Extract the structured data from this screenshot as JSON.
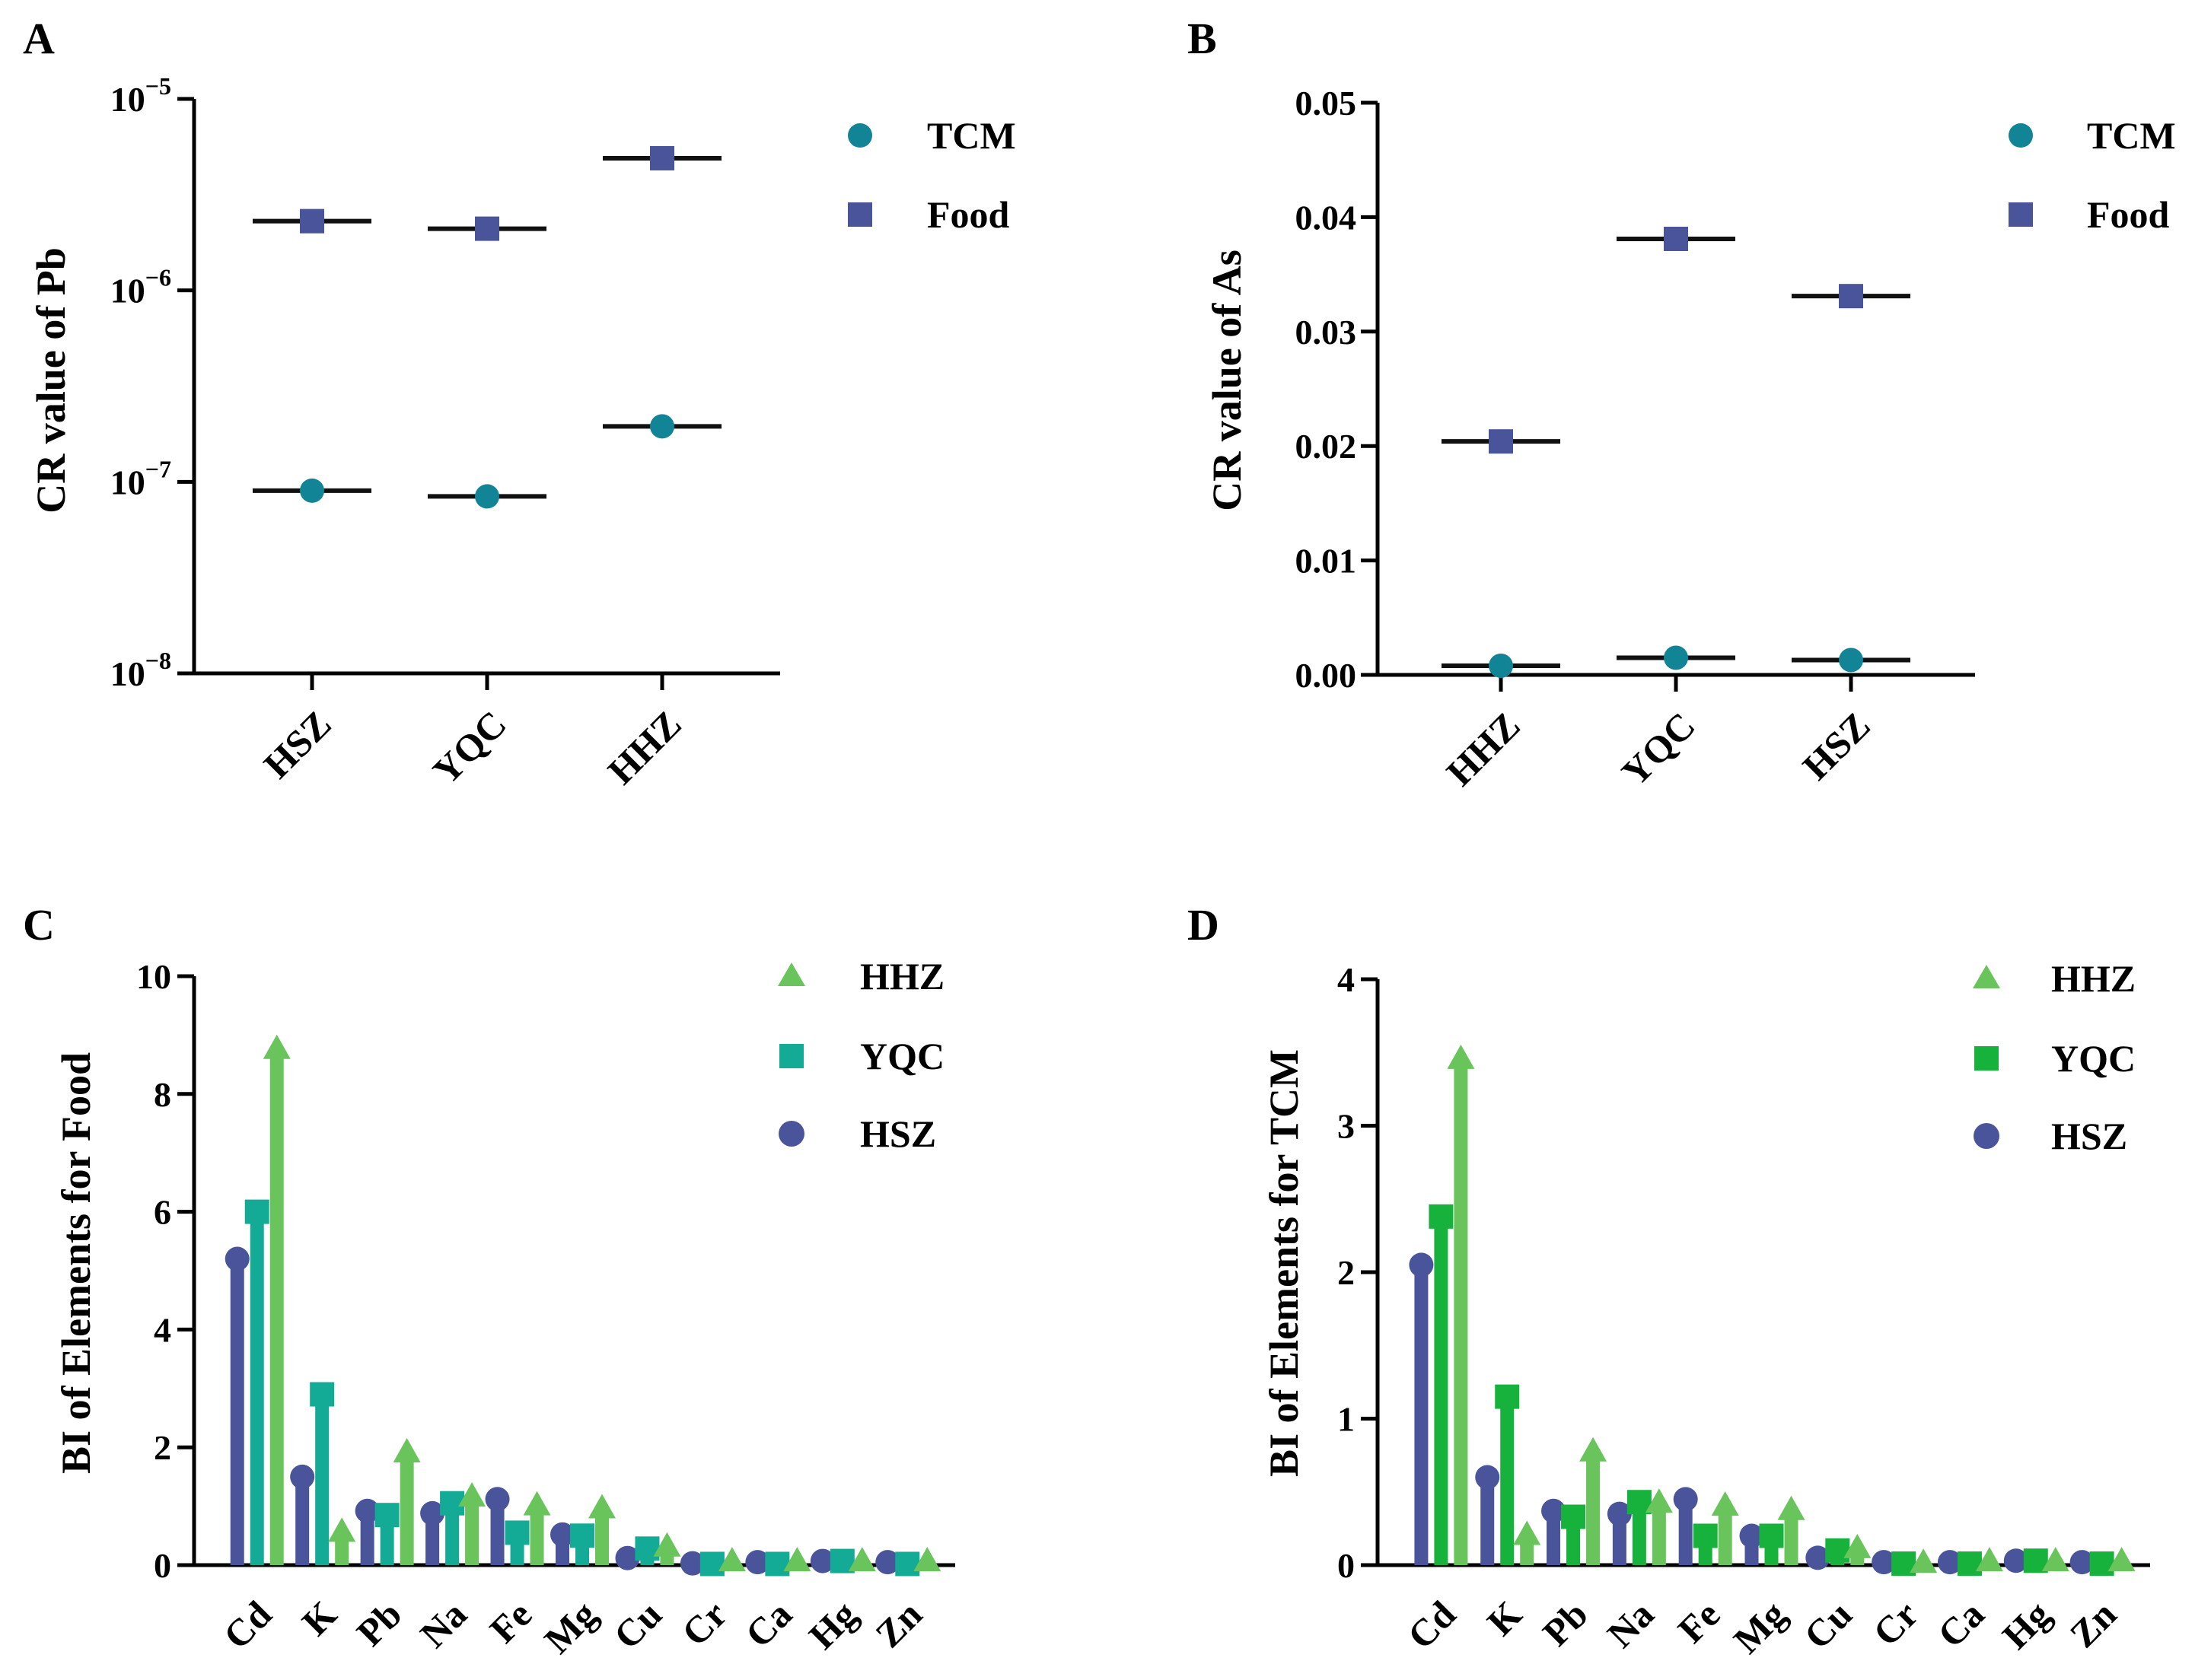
{
  "colors": {
    "tcm": "#118496",
    "food": "#4a549b",
    "hhz": "#6ac45c",
    "yqc_food": "#14ab96",
    "yqc_tcm": "#17b23c",
    "hsz": "#4a549b"
  },
  "chart_data": [
    {
      "panel": "A",
      "type": "scatter",
      "yscale": "log",
      "ylabel": "CR value of Pb",
      "categories": [
        "HSZ",
        "YQC",
        "HHZ"
      ],
      "series": [
        {
          "name": "TCM",
          "marker": "circle",
          "values": [
            9e-08,
            8.4e-08,
            1.95e-07
          ]
        },
        {
          "name": "Food",
          "marker": "square",
          "values": [
            2.3e-06,
            2.1e-06,
            4.9e-06
          ]
        }
      ],
      "ylim": [
        1e-08,
        1e-05
      ],
      "yticks": [
        {
          "value": 1e-08,
          "base": "10",
          "exp": "−8"
        },
        {
          "value": 1e-07,
          "base": "10",
          "exp": "−7"
        },
        {
          "value": 1e-06,
          "base": "10",
          "exp": "−6"
        },
        {
          "value": 1e-05,
          "base": "10",
          "exp": "−5"
        }
      ],
      "legend": [
        "TCM",
        "Food"
      ]
    },
    {
      "panel": "B",
      "type": "scatter",
      "yscale": "linear",
      "ylabel": "CR value of As",
      "categories": [
        "HHZ",
        "YQC",
        "HSZ"
      ],
      "series": [
        {
          "name": "TCM",
          "marker": "circle",
          "values": [
            0.0008,
            0.0015,
            0.0013
          ]
        },
        {
          "name": "Food",
          "marker": "square",
          "values": [
            0.0204,
            0.0381,
            0.0331
          ]
        }
      ],
      "ylim": [
        0,
        0.05
      ],
      "yticks": [
        {
          "value": 0,
          "label": "0.00"
        },
        {
          "value": 0.01,
          "label": "0.01"
        },
        {
          "value": 0.02,
          "label": "0.02"
        },
        {
          "value": 0.03,
          "label": "0.03"
        },
        {
          "value": 0.04,
          "label": "0.04"
        },
        {
          "value": 0.05,
          "label": "0.05"
        }
      ],
      "legend": [
        "TCM",
        "Food"
      ]
    },
    {
      "panel": "C",
      "type": "lollipop",
      "ylabel": "BI of Elements for Food",
      "categories": [
        "Cd",
        "K",
        "Pb",
        "Na",
        "Fe",
        "Mg",
        "Cu",
        "Cr",
        "Ca",
        "Hg",
        "Zn"
      ],
      "series": [
        {
          "name": "HSZ",
          "marker": "circle",
          "values": [
            5.2,
            1.5,
            0.92,
            0.88,
            1.12,
            0.52,
            0.12,
            0.03,
            0.05,
            0.07,
            0.05
          ]
        },
        {
          "name": "YQC",
          "marker": "square",
          "values": [
            6.0,
            2.9,
            0.85,
            1.05,
            0.55,
            0.5,
            0.28,
            0.02,
            0.02,
            0.07,
            0.02
          ]
        },
        {
          "name": "HHZ",
          "marker": "triangle",
          "values": [
            8.75,
            0.55,
            1.9,
            1.15,
            1.0,
            0.95,
            0.3,
            0.05,
            0.05,
            0.05,
            0.05
          ]
        }
      ],
      "ylim": [
        0,
        10
      ],
      "yticks": [
        {
          "value": 0,
          "label": "0"
        },
        {
          "value": 2,
          "label": "2"
        },
        {
          "value": 4,
          "label": "4"
        },
        {
          "value": 6,
          "label": "6"
        },
        {
          "value": 8,
          "label": "8"
        },
        {
          "value": 10,
          "label": "10"
        }
      ],
      "legend": [
        "HHZ",
        "YQC",
        "HSZ"
      ]
    },
    {
      "panel": "D",
      "type": "lollipop",
      "ylabel": "BI of Elements for TCM",
      "categories": [
        "Cd",
        "K",
        "Pb",
        "Na",
        "Fe",
        "Mg",
        "Cu",
        "Cr",
        "Ca",
        "Hg",
        "Zn"
      ],
      "series": [
        {
          "name": "HSZ",
          "marker": "circle",
          "values": [
            2.05,
            0.6,
            0.37,
            0.35,
            0.45,
            0.2,
            0.05,
            0.02,
            0.02,
            0.03,
            0.02
          ]
        },
        {
          "name": "YQC",
          "marker": "square",
          "values": [
            2.38,
            1.15,
            0.33,
            0.43,
            0.2,
            0.2,
            0.1,
            0.01,
            0.01,
            0.03,
            0.01
          ]
        },
        {
          "name": "HHZ",
          "marker": "triangle",
          "values": [
            3.45,
            0.2,
            0.77,
            0.42,
            0.4,
            0.37,
            0.11,
            0.01,
            0.02,
            0.02,
            0.02
          ]
        }
      ],
      "ylim": [
        0,
        4
      ],
      "yticks": [
        {
          "value": 0,
          "label": "0"
        },
        {
          "value": 1,
          "label": "1"
        },
        {
          "value": 2,
          "label": "2"
        },
        {
          "value": 3,
          "label": "3"
        },
        {
          "value": 4,
          "label": "4"
        }
      ],
      "legend": [
        "HHZ",
        "YQC",
        "HSZ"
      ]
    }
  ]
}
